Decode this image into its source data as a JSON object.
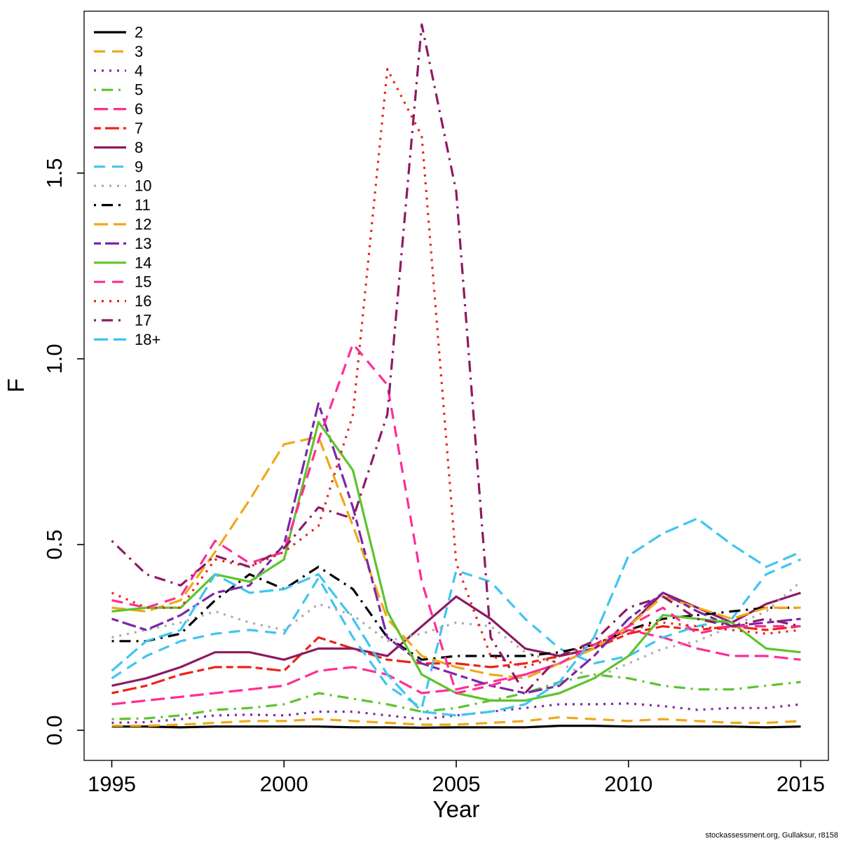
{
  "meta": {
    "watermark": "stockassessment.org, Gullaksur, r8158"
  },
  "chart_data": {
    "type": "line",
    "title": "",
    "xlabel": "Year",
    "ylabel": "F",
    "legend_position": "top-left",
    "grid": false,
    "xlim": [
      1995,
      2015
    ],
    "ylim": [
      0,
      1.95
    ],
    "xticks": [
      1995,
      2000,
      2005,
      2010,
      2015
    ],
    "yticks": [
      0.0,
      0.5,
      1.0,
      1.5
    ],
    "x": [
      1995,
      1996,
      1997,
      1998,
      1999,
      2000,
      2001,
      2002,
      2003,
      2004,
      2005,
      2006,
      2007,
      2008,
      2009,
      2010,
      2011,
      2012,
      2013,
      2014,
      2015
    ],
    "series": [
      {
        "name": "2",
        "color": "#000000",
        "linetype": "solid",
        "values": [
          0.01,
          0.01,
          0.008,
          0.01,
          0.01,
          0.01,
          0.01,
          0.008,
          0.008,
          0.007,
          0.008,
          0.008,
          0.008,
          0.012,
          0.012,
          0.01,
          0.01,
          0.01,
          0.01,
          0.008,
          0.01
        ]
      },
      {
        "name": "3",
        "color": "#F0A818",
        "linetype": "dashed",
        "values": [
          0.012,
          0.012,
          0.015,
          0.02,
          0.025,
          0.025,
          0.03,
          0.025,
          0.02,
          0.015,
          0.015,
          0.02,
          0.025,
          0.035,
          0.03,
          0.025,
          0.03,
          0.025,
          0.02,
          0.02,
          0.025
        ]
      },
      {
        "name": "4",
        "color": "#7D26A8",
        "linetype": "dotted",
        "values": [
          0.02,
          0.022,
          0.03,
          0.04,
          0.042,
          0.04,
          0.05,
          0.05,
          0.04,
          0.03,
          0.04,
          0.05,
          0.06,
          0.07,
          0.07,
          0.072,
          0.065,
          0.055,
          0.06,
          0.06,
          0.07
        ]
      },
      {
        "name": "5",
        "color": "#5CC42B",
        "linetype": "dotdash",
        "values": [
          0.03,
          0.032,
          0.04,
          0.055,
          0.06,
          0.07,
          0.1,
          0.085,
          0.07,
          0.05,
          0.06,
          0.08,
          0.1,
          0.13,
          0.15,
          0.14,
          0.12,
          0.11,
          0.11,
          0.12,
          0.13
        ]
      },
      {
        "name": "6",
        "color": "#FF2D96",
        "linetype": "longdash",
        "values": [
          0.07,
          0.08,
          0.09,
          0.1,
          0.11,
          0.12,
          0.16,
          0.17,
          0.15,
          0.1,
          0.11,
          0.13,
          0.15,
          0.18,
          0.22,
          0.27,
          0.25,
          0.22,
          0.2,
          0.2,
          0.19
        ]
      },
      {
        "name": "7",
        "color": "#EC2418",
        "linetype": "twodash",
        "values": [
          0.1,
          0.12,
          0.15,
          0.17,
          0.17,
          0.16,
          0.25,
          0.22,
          0.19,
          0.18,
          0.18,
          0.17,
          0.18,
          0.2,
          0.22,
          0.26,
          0.28,
          0.27,
          0.28,
          0.27,
          0.28
        ]
      },
      {
        "name": "8",
        "color": "#8D1A63",
        "linetype": "solid",
        "values": [
          0.12,
          0.14,
          0.17,
          0.21,
          0.21,
          0.19,
          0.22,
          0.22,
          0.2,
          0.28,
          0.36,
          0.3,
          0.22,
          0.2,
          0.22,
          0.28,
          0.37,
          0.33,
          0.29,
          0.34,
          0.37
        ]
      },
      {
        "name": "9",
        "color": "#3FC5F0",
        "linetype": "dashed",
        "values": [
          0.14,
          0.2,
          0.24,
          0.26,
          0.27,
          0.26,
          0.41,
          0.25,
          0.12,
          0.06,
          0.43,
          0.4,
          0.3,
          0.22,
          0.18,
          0.2,
          0.25,
          0.28,
          0.3,
          0.42,
          0.46
        ]
      },
      {
        "name": "10",
        "color": "#ABABAB",
        "linetype": "dotted",
        "values": [
          0.25,
          0.27,
          0.29,
          0.32,
          0.29,
          0.27,
          0.34,
          0.31,
          0.24,
          0.26,
          0.29,
          0.28,
          0.21,
          0.18,
          0.14,
          0.18,
          0.22,
          0.24,
          0.28,
          0.32,
          0.4
        ]
      },
      {
        "name": "11",
        "color": "#000000",
        "linetype": "dotdash",
        "values": [
          0.24,
          0.24,
          0.26,
          0.35,
          0.42,
          0.38,
          0.44,
          0.38,
          0.25,
          0.19,
          0.2,
          0.2,
          0.2,
          0.21,
          0.23,
          0.27,
          0.3,
          0.31,
          0.32,
          0.33,
          0.33
        ]
      },
      {
        "name": "12",
        "color": "#F0A818",
        "linetype": "longdash",
        "values": [
          0.33,
          0.32,
          0.35,
          0.48,
          0.62,
          0.77,
          0.79,
          0.55,
          0.3,
          0.2,
          0.17,
          0.15,
          0.14,
          0.18,
          0.22,
          0.28,
          0.36,
          0.33,
          0.3,
          0.33,
          0.33
        ]
      },
      {
        "name": "13",
        "color": "#7D26A8",
        "linetype": "twodash",
        "values": [
          0.3,
          0.27,
          0.31,
          0.37,
          0.39,
          0.5,
          0.88,
          0.6,
          0.25,
          0.18,
          0.15,
          0.12,
          0.1,
          0.12,
          0.2,
          0.3,
          0.37,
          0.32,
          0.28,
          0.29,
          0.3
        ]
      },
      {
        "name": "14",
        "color": "#5CC42B",
        "linetype": "solid",
        "values": [
          0.32,
          0.33,
          0.33,
          0.42,
          0.4,
          0.46,
          0.83,
          0.7,
          0.32,
          0.15,
          0.1,
          0.08,
          0.08,
          0.1,
          0.14,
          0.2,
          0.31,
          0.3,
          0.29,
          0.22,
          0.21
        ]
      },
      {
        "name": "15",
        "color": "#FF2D96",
        "linetype": "dashed",
        "values": [
          0.35,
          0.33,
          0.36,
          0.51,
          0.45,
          0.48,
          0.78,
          1.04,
          0.93,
          0.4,
          0.1,
          0.12,
          0.15,
          0.18,
          0.23,
          0.28,
          0.33,
          0.26,
          0.28,
          0.28,
          0.28
        ]
      },
      {
        "name": "16",
        "color": "#EC2418",
        "linetype": "dotted",
        "values": [
          0.37,
          0.33,
          0.33,
          0.46,
          0.44,
          0.48,
          0.55,
          0.85,
          1.78,
          1.6,
          0.45,
          0.2,
          0.17,
          0.2,
          0.23,
          0.27,
          0.29,
          0.28,
          0.27,
          0.26,
          0.27
        ]
      },
      {
        "name": "17",
        "color": "#8D1A63",
        "linetype": "dotdash",
        "values": [
          0.51,
          0.42,
          0.39,
          0.47,
          0.44,
          0.49,
          0.6,
          0.57,
          0.85,
          1.9,
          1.45,
          0.25,
          0.1,
          0.2,
          0.24,
          0.33,
          0.36,
          0.3,
          0.28,
          0.3,
          0.28
        ]
      },
      {
        "name": "18+",
        "color": "#3FC5F0",
        "linetype": "longdash",
        "values": [
          0.16,
          0.24,
          0.27,
          0.42,
          0.37,
          0.38,
          0.42,
          0.3,
          0.15,
          0.05,
          0.04,
          0.05,
          0.07,
          0.13,
          0.25,
          0.47,
          0.53,
          0.57,
          0.5,
          0.44,
          0.48
        ]
      }
    ]
  }
}
